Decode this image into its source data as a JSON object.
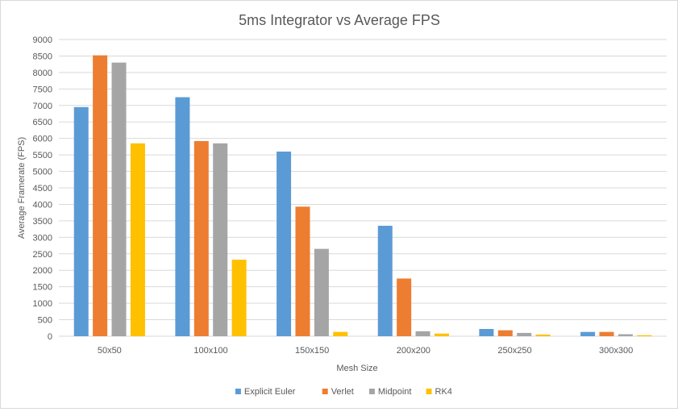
{
  "chart_data": {
    "type": "bar",
    "title": "5ms Integrator vs Average FPS",
    "xlabel": "Mesh Size",
    "ylabel": "Average Framerate (FPS)",
    "ylim": [
      0,
      9000
    ],
    "ytick_step": 500,
    "grid": true,
    "legend_position": "bottom",
    "categories": [
      "50x50",
      "100x100",
      "150x150",
      "200x200",
      "250x250",
      "300x300"
    ],
    "series": [
      {
        "name": "Explicit Euler",
        "color": "#5b9bd5",
        "values": [
          6950,
          7250,
          5600,
          3350,
          220,
          130
        ]
      },
      {
        "name": "Verlet",
        "color": "#ed7d31",
        "values": [
          8520,
          5920,
          3930,
          1750,
          180,
          130
        ]
      },
      {
        "name": "Midpoint",
        "color": "#a5a5a5",
        "values": [
          8300,
          5850,
          2650,
          150,
          100,
          60
        ]
      },
      {
        "name": "RK4",
        "color": "#ffc000",
        "values": [
          5850,
          2320,
          130,
          80,
          50,
          30
        ]
      }
    ]
  }
}
